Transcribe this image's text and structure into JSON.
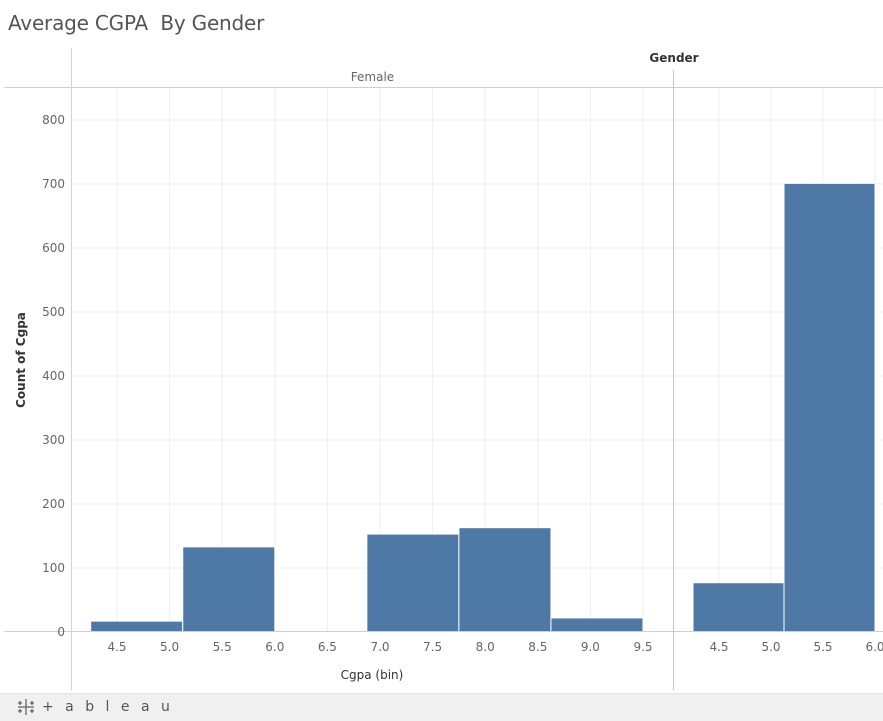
{
  "title": "Average CGPA  By Gender",
  "footer": {
    "logo_text": "+ a b l e a u",
    "logo_icon": "tableau-plus-icon"
  },
  "chart_data": {
    "type": "bar",
    "column_header_title": "Gender",
    "xlabel": "Cgpa (bin)",
    "ylabel": "Count of Cgpa",
    "ylim": [
      0,
      850
    ],
    "yticks": [
      0,
      100,
      200,
      300,
      400,
      500,
      600,
      700,
      800
    ],
    "grid": true,
    "bar_color": "#4e79a7",
    "panels": [
      {
        "name": "Female",
        "xticks": [
          "4.5",
          "5.0",
          "5.5",
          "6.0",
          "6.5",
          "7.0",
          "7.5",
          "8.0",
          "8.5",
          "9.0",
          "9.5"
        ],
        "bins": [
          {
            "start": 4.25,
            "end": 5.125,
            "value": 17
          },
          {
            "start": 5.125,
            "end": 6.0,
            "value": 133
          },
          {
            "start": 6.875,
            "end": 7.75,
            "value": 153
          },
          {
            "start": 7.75,
            "end": 8.625,
            "value": 163
          },
          {
            "start": 8.625,
            "end": 9.5,
            "value": 22
          }
        ]
      },
      {
        "name": "",
        "xticks": [
          "4.5",
          "5.0",
          "5.5",
          "6.0"
        ],
        "bins": [
          {
            "start": 4.25,
            "end": 5.125,
            "value": 77
          },
          {
            "start": 5.125,
            "end": 6.0,
            "value": 701
          }
        ]
      }
    ]
  }
}
